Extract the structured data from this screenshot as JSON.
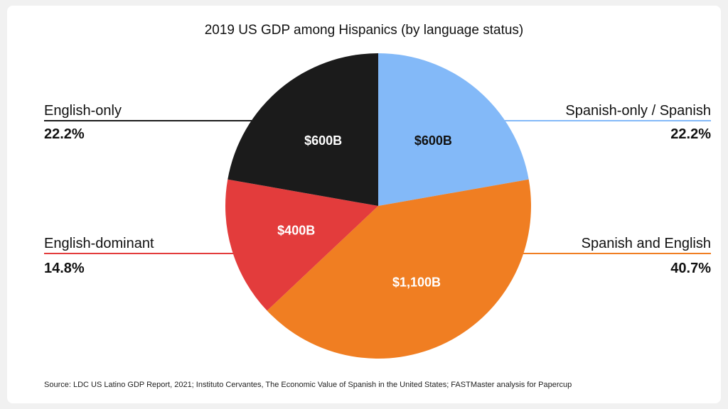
{
  "chart_data": {
    "type": "pie",
    "title": "2019 US GDP among Hispanics (by language status)",
    "slices": [
      {
        "name": "Spanish-only / Spanish",
        "value": 600,
        "value_label": "$600B",
        "percent_label": "22.2%",
        "color": "#83b9f8",
        "label_color": "#111111",
        "side": "right"
      },
      {
        "name": "Spanish and English",
        "value": 1100,
        "value_label": "$1,100B",
        "percent_label": "40.7%",
        "color": "#f07e22",
        "label_color": "#ffffff",
        "side": "right"
      },
      {
        "name": "English-dominant",
        "value": 400,
        "value_label": "$400B",
        "percent_label": "14.8%",
        "color": "#e33c3c",
        "label_color": "#ffffff",
        "side": "left"
      },
      {
        "name": "English-only",
        "value": 600,
        "value_label": "$600B",
        "percent_label": "22.2%",
        "color": "#1b1b1b",
        "label_color": "#ffffff",
        "side": "left"
      }
    ],
    "start_angle_deg": 0,
    "direction": "clockwise",
    "legend": "outside-sides"
  },
  "source": "Source: LDC US Latino GDP Report, 2021; Instituto Cervantes, The Economic Value of Spanish in the United States; FASTMaster analysis for Papercup"
}
